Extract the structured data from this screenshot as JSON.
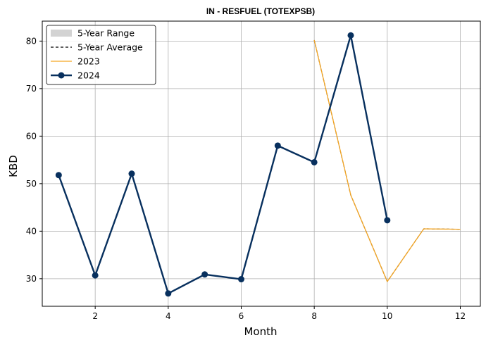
{
  "chart_data": {
    "type": "line",
    "title": "IN - RESFUEL (TOTEXPSB)",
    "xlabel": "Month",
    "ylabel": "KBD",
    "xlim": [
      0.55,
      12.55
    ],
    "ylim": [
      24.2,
      84.2
    ],
    "xticks": [
      2,
      4,
      6,
      8,
      10,
      12
    ],
    "yticks": [
      30,
      40,
      50,
      60,
      70,
      80
    ],
    "grid": true,
    "legend_position": "top-left",
    "series": [
      {
        "name": "5-Year Range",
        "style": "band",
        "color": "#d3d3d3",
        "x": [
          8,
          9,
          10,
          11,
          12
        ],
        "lower": [
          80.2,
          47.6,
          29.4,
          40.5,
          40.4
        ],
        "upper": [
          80.2,
          47.6,
          29.4,
          40.5,
          40.4
        ]
      },
      {
        "name": "5-Year Average",
        "style": "dashed",
        "color": "#000000",
        "x": [
          8,
          9,
          10,
          11,
          12
        ],
        "values": [
          80.2,
          47.6,
          29.4,
          40.5,
          40.4
        ]
      },
      {
        "name": "2023",
        "style": "line",
        "color": "#f5a623",
        "x": [
          8,
          9,
          10,
          11,
          12
        ],
        "values": [
          80.2,
          47.6,
          29.4,
          40.5,
          40.4
        ]
      },
      {
        "name": "2024",
        "style": "line-marker",
        "color": "#08305e",
        "x": [
          1,
          2,
          3,
          4,
          5,
          6,
          7,
          8,
          9,
          10
        ],
        "values": [
          51.8,
          30.7,
          52.1,
          26.9,
          30.9,
          29.9,
          58.0,
          54.5,
          81.2,
          42.3
        ]
      }
    ]
  }
}
